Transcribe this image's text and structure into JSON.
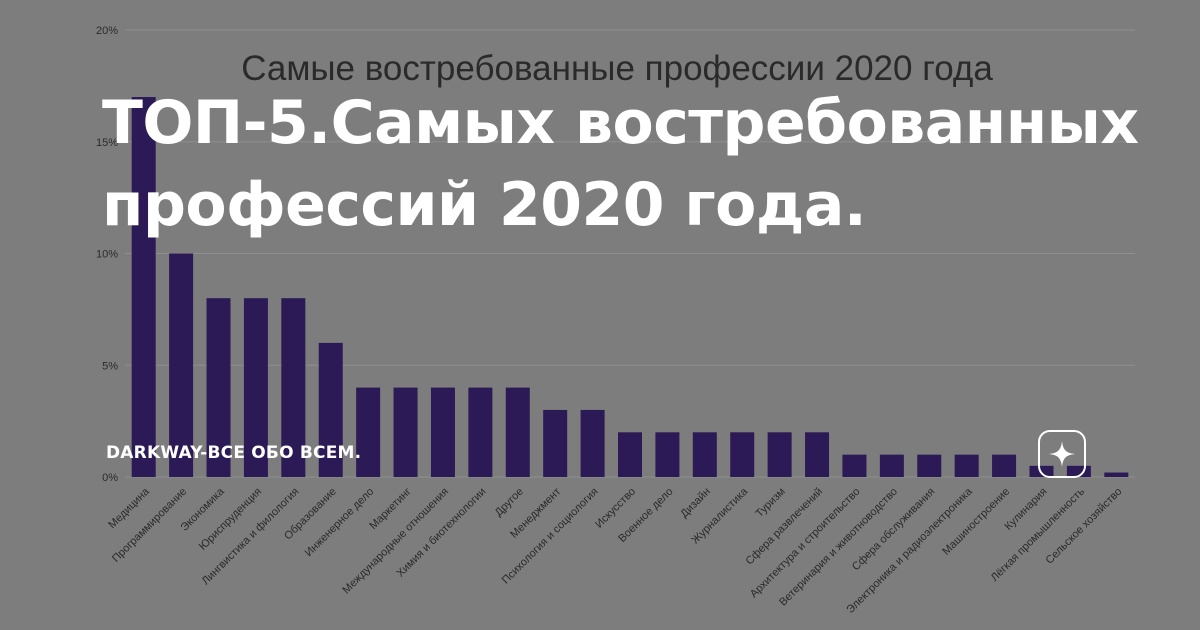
{
  "overlay": {
    "headline_line1": "ТОП-5.Самых востребованных",
    "headline_line2": "профессий 2020 года.",
    "channel_name": "DARKWAY-ВСЕ ОБО ВСЕМ.",
    "badge_icon": "sparkle-star-icon"
  },
  "colors": {
    "background": "#7d7d7d",
    "bar": "#2b1a55",
    "gridline": "#8f8f8f",
    "chart_text": "#2a2a2a"
  },
  "chart_data": {
    "type": "bar",
    "title": "Самые востребованные профессии 2020 года",
    "xlabel": "",
    "ylabel": "",
    "ylim": [
      0,
      20
    ],
    "grid": true,
    "y_ticks": [
      {
        "value": 0,
        "label": "0%"
      },
      {
        "value": 5,
        "label": "5%"
      },
      {
        "value": 10,
        "label": "10%"
      },
      {
        "value": 15,
        "label": "15%"
      },
      {
        "value": 20,
        "label": "20%"
      }
    ],
    "categories": [
      "Медицина",
      "Программирование",
      "Экономика",
      "Юриспруденция",
      "Лингвистика и филология",
      "Образование",
      "Инженерное дело",
      "Маркетинг",
      "Международные отношения",
      "Химия и биотехнологии",
      "Другое",
      "Менеджмент",
      "Психология и социология",
      "Искусство",
      "Военное дело",
      "Дизайн",
      "Журналистика",
      "Туризм",
      "Сфера развлечений",
      "Архитектура и строительство",
      "Ветеринария и животноводство",
      "Сфера обслуживания",
      "Электроника и радиоэлектроника",
      "Машиностроение",
      "Кулинария",
      "Лёгкая промышленность",
      "Сельское хозяйство"
    ],
    "values": [
      17,
      10,
      8,
      8,
      8,
      6,
      4,
      4,
      4,
      4,
      4,
      3,
      3,
      2,
      2,
      2,
      2,
      2,
      2,
      1,
      1,
      1,
      1,
      1,
      0.5,
      0.5,
      0.2
    ]
  }
}
